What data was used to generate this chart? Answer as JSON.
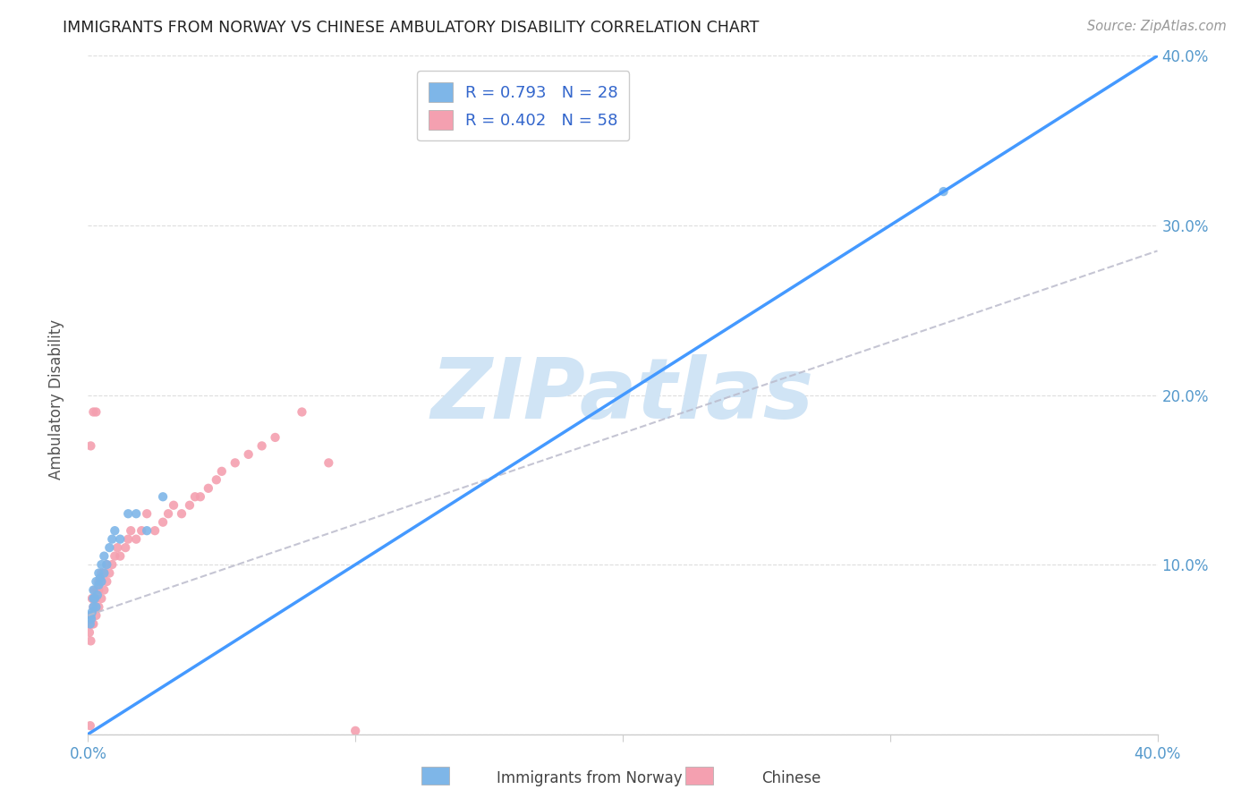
{
  "title": "IMMIGRANTS FROM NORWAY VS CHINESE AMBULATORY DISABILITY CORRELATION CHART",
  "source": "Source: ZipAtlas.com",
  "ylabel": "Ambulatory Disability",
  "xlim": [
    0.0,
    0.4
  ],
  "ylim": [
    0.0,
    0.4
  ],
  "xticks": [
    0.0,
    0.1,
    0.2,
    0.3,
    0.4
  ],
  "yticks": [
    0.0,
    0.1,
    0.2,
    0.3,
    0.4
  ],
  "xticklabels": [
    "0.0%",
    "",
    "",
    "",
    "40.0%"
  ],
  "yticklabels": [
    "",
    "10.0%",
    "20.0%",
    "30.0%",
    "40.0%"
  ],
  "norway_color": "#7EB6E8",
  "chinese_color": "#F4A0B0",
  "norway_line_color": "#4499FF",
  "chinese_line_color": "#BBBBCC",
  "tick_label_color": "#5599CC",
  "norway_R": 0.793,
  "norway_N": 28,
  "chinese_R": 0.402,
  "chinese_N": 58,
  "legend_text_color": "#3366CC",
  "watermark": "ZIPatlas",
  "watermark_color": "#D0E4F5",
  "norway_line_x0": 0.0,
  "norway_line_y0": 0.0,
  "norway_line_x1": 0.4,
  "norway_line_y1": 0.4,
  "chinese_line_x0": 0.0,
  "chinese_line_y0": 0.07,
  "chinese_line_x1": 0.4,
  "chinese_line_y1": 0.285,
  "norway_scatter_x": [
    0.0008,
    0.001,
    0.0012,
    0.0015,
    0.002,
    0.002,
    0.0025,
    0.003,
    0.003,
    0.0035,
    0.004,
    0.004,
    0.0045,
    0.005,
    0.005,
    0.006,
    0.006,
    0.007,
    0.008,
    0.009,
    0.01,
    0.012,
    0.015,
    0.018,
    0.022,
    0.028,
    0.32,
    0.002
  ],
  "norway_scatter_y": [
    0.065,
    0.07,
    0.068,
    0.072,
    0.075,
    0.085,
    0.08,
    0.09,
    0.075,
    0.082,
    0.095,
    0.088,
    0.092,
    0.09,
    0.1,
    0.095,
    0.105,
    0.1,
    0.11,
    0.115,
    0.12,
    0.115,
    0.13,
    0.13,
    0.12,
    0.14,
    0.32,
    0.08
  ],
  "chinese_scatter_x": [
    0.0005,
    0.0007,
    0.001,
    0.001,
    0.0012,
    0.0015,
    0.0015,
    0.002,
    0.002,
    0.002,
    0.0025,
    0.003,
    0.003,
    0.003,
    0.0035,
    0.004,
    0.004,
    0.004,
    0.005,
    0.005,
    0.005,
    0.006,
    0.006,
    0.007,
    0.007,
    0.008,
    0.009,
    0.01,
    0.011,
    0.012,
    0.014,
    0.015,
    0.016,
    0.018,
    0.02,
    0.022,
    0.025,
    0.028,
    0.03,
    0.032,
    0.035,
    0.038,
    0.04,
    0.042,
    0.045,
    0.048,
    0.05,
    0.055,
    0.06,
    0.065,
    0.07,
    0.08,
    0.09,
    0.1,
    0.001,
    0.0008,
    0.002,
    0.003
  ],
  "chinese_scatter_y": [
    0.06,
    0.065,
    0.055,
    0.07,
    0.065,
    0.08,
    0.065,
    0.075,
    0.08,
    0.065,
    0.085,
    0.07,
    0.08,
    0.075,
    0.085,
    0.09,
    0.085,
    0.075,
    0.09,
    0.095,
    0.08,
    0.085,
    0.095,
    0.09,
    0.1,
    0.095,
    0.1,
    0.105,
    0.11,
    0.105,
    0.11,
    0.115,
    0.12,
    0.115,
    0.12,
    0.13,
    0.12,
    0.125,
    0.13,
    0.135,
    0.13,
    0.135,
    0.14,
    0.14,
    0.145,
    0.15,
    0.155,
    0.16,
    0.165,
    0.17,
    0.175,
    0.19,
    0.16,
    0.002,
    0.17,
    0.005,
    0.19,
    0.19
  ]
}
